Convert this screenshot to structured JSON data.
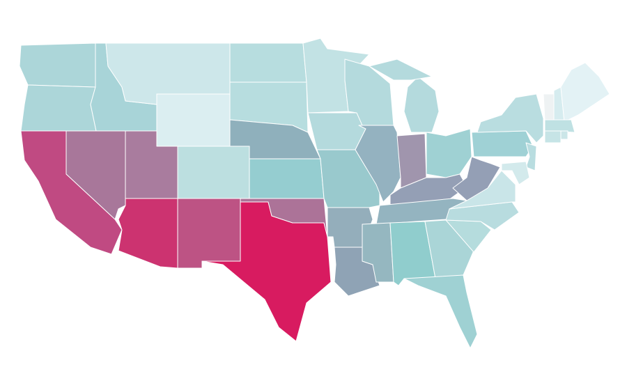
{
  "chart_data": {
    "type": "choropleth",
    "background": "#ffffff",
    "regions": [
      {
        "color": "#acd6d9"
      },
      {
        "color": "#acd6d9"
      },
      {
        "color": "#a8d4d8"
      },
      {
        "color": "#cde7ea"
      },
      {
        "color": "#dbeef1"
      },
      {
        "color": "#b7dddf"
      },
      {
        "color": "#b7dddf"
      },
      {
        "color": "#8fb0bc"
      },
      {
        "color": "#bcdfe0"
      },
      {
        "color": "#a97c9e"
      },
      {
        "color": "#a8779a"
      },
      {
        "color": "#c04a82"
      },
      {
        "color": "#cc3370"
      },
      {
        "color": "#bd5384"
      },
      {
        "color": "#d81b60"
      },
      {
        "color": "#ac7398"
      },
      {
        "color": "#95cdd0"
      },
      {
        "color": "#c2e2e4"
      },
      {
        "color": "#b4dadd"
      },
      {
        "color": "#99c9cd"
      },
      {
        "color": "#94aebb"
      },
      {
        "color": "#8fa3b5"
      },
      {
        "color": "#b4dadd"
      },
      {
        "color": "#94b2c0"
      },
      {
        "color": "#b4dadd"
      },
      {
        "color": "#b4dadd"
      },
      {
        "color": "#a095ad"
      },
      {
        "color": "#9fd1d3"
      },
      {
        "color": "#949fb5"
      },
      {
        "color": "#94b4c0"
      },
      {
        "color": "#95b7c0"
      },
      {
        "color": "#90cdcd"
      },
      {
        "color": "#aad5d7"
      },
      {
        "color": "#9fd1d3"
      },
      {
        "color": "#b5dcdd"
      },
      {
        "color": "#b8dcdf"
      },
      {
        "color": "#c9e5e8"
      },
      {
        "color": "#949fb5"
      },
      {
        "color": "#9fd1d5"
      },
      {
        "color": "#b9dde0"
      },
      {
        "color": "#eef2f3"
      },
      {
        "color": "#d6ecef"
      },
      {
        "color": "#e3f2f5"
      },
      {
        "color": "#bfe1e3"
      },
      {
        "color": "#c6e4e6"
      },
      {
        "color": "#cbe6e8"
      },
      {
        "color": "#b9dde0"
      },
      {
        "color": "#d3eaec"
      }
    ]
  }
}
